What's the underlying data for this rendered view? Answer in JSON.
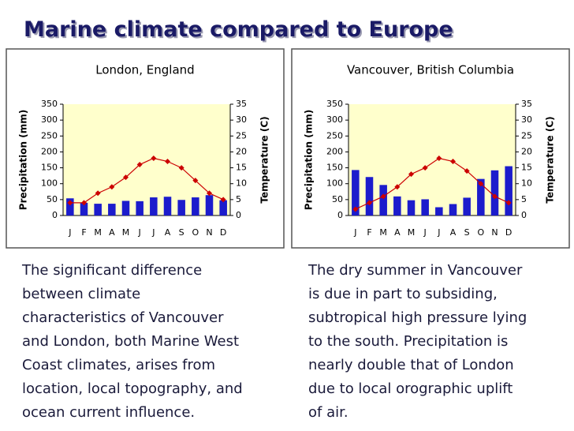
{
  "title": "Marine climate compared to Europe",
  "text_left": [
    "The significant difference",
    "between climate",
    "characteristics of Vancouver",
    "and London, both Marine West",
    "Coast climates, arises from",
    "location, local topography, and",
    "ocean current influence."
  ],
  "text_right": [
    "The dry summer in Vancouver",
    "is due in part to subsiding,",
    "subtropical high pressure lying",
    "to the south. Precipitation is",
    "nearly double that of London",
    "due to local orographic uplift",
    "of air."
  ],
  "chart_data": [
    {
      "type": "bar",
      "title": "London, England",
      "categories": [
        "J",
        "F",
        "M",
        "A",
        "M",
        "J",
        "J",
        "A",
        "S",
        "O",
        "N",
        "D"
      ],
      "ylabel": "Precipitation (mm)",
      "y2label": "Temperature (C)",
      "ylim": [
        0,
        350
      ],
      "yticks": [
        0,
        50,
        100,
        150,
        200,
        250,
        300,
        350
      ],
      "y2lim": [
        0,
        35
      ],
      "y2ticks": [
        0,
        5,
        10,
        15,
        20,
        25,
        30,
        35
      ],
      "series": [
        {
          "type": "bar",
          "color": "#1c1ccc",
          "values": [
            54,
            40,
            37,
            37,
            46,
            45,
            57,
            59,
            49,
            57,
            64,
            48
          ]
        },
        {
          "type": "line",
          "axis": "y2",
          "color": "#cc0000",
          "values": [
            4,
            4,
            7,
            9,
            12,
            16,
            18,
            17,
            15,
            11,
            7,
            5
          ]
        }
      ]
    },
    {
      "type": "bar",
      "title": "Vancouver, British Columbia",
      "categories": [
        "J",
        "F",
        "M",
        "A",
        "M",
        "J",
        "J",
        "A",
        "S",
        "O",
        "N",
        "D"
      ],
      "ylabel": "Precipitation (mm)",
      "y2label": "Temperature (C)",
      "ylim": [
        0,
        350
      ],
      "yticks": [
        0,
        50,
        100,
        150,
        200,
        250,
        300,
        350
      ],
      "y2lim": [
        0,
        35
      ],
      "y2ticks": [
        0,
        5,
        10,
        15,
        20,
        25,
        30,
        35
      ],
      "series": [
        {
          "type": "bar",
          "color": "#1c1ccc",
          "values": [
            143,
            121,
            96,
            60,
            48,
            51,
            26,
            36,
            56,
            115,
            142,
            155
          ]
        },
        {
          "type": "line",
          "axis": "y2",
          "color": "#cc0000",
          "values": [
            2,
            4,
            6,
            9,
            13,
            15,
            18,
            17,
            14,
            10,
            6,
            4
          ]
        }
      ]
    }
  ]
}
